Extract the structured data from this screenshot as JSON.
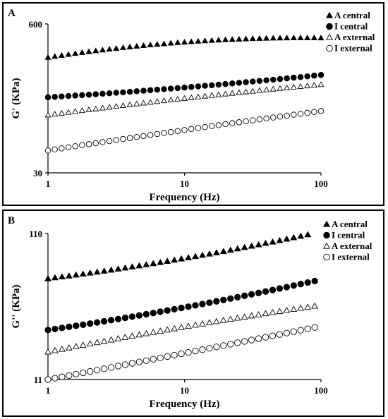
{
  "chart_data": [
    {
      "type": "scatter",
      "panel_label": "A",
      "title": "",
      "xlabel": "Frequency (Hz)",
      "ylabel": "G' (KPa)",
      "x_scale": "log",
      "y_scale": "log",
      "xlim": [
        1,
        100
      ],
      "ylim": [
        30,
        600
      ],
      "xticks": [
        "1",
        "10",
        "100"
      ],
      "yticks": [
        "30",
        "600"
      ],
      "legend_position": "top-right",
      "series": [
        {
          "name": "A central",
          "marker": "filled-triangle",
          "x_range": [
            1,
            100
          ],
          "y_start": 306,
          "y_end": 453,
          "y_mid": 416,
          "points": 41
        },
        {
          "name": "I central",
          "marker": "filled-circle",
          "x_range": [
            1,
            100
          ],
          "y_start": 137,
          "y_end": 215,
          "y_mid": 167,
          "points": 41
        },
        {
          "name": "A external",
          "marker": "open-triangle",
          "x_range": [
            1,
            100
          ],
          "y_start": 96,
          "y_end": 177,
          "y_mid": 134,
          "points": 41
        },
        {
          "name": "I external",
          "marker": "open-circle",
          "x_range": [
            1,
            100
          ],
          "y_start": 47,
          "y_end": 104,
          "y_mid": 71,
          "points": 41
        }
      ]
    },
    {
      "type": "scatter",
      "panel_label": "B",
      "title": "",
      "xlabel": "Frequency (Hz)",
      "ylabel": "G'' (KPa)",
      "x_scale": "log",
      "y_scale": "log",
      "xlim": [
        1,
        100
      ],
      "ylim": [
        11,
        110
      ],
      "xticks": [
        "1",
        "10",
        "100"
      ],
      "yticks": [
        "11",
        "110"
      ],
      "legend_position": "top-right",
      "series": [
        {
          "name": "A central",
          "marker": "filled-triangle",
          "x_range": [
            1,
            80
          ],
          "y_start": 54,
          "y_end": 108,
          "y_mid": 73,
          "points": 38
        },
        {
          "name": "I central",
          "marker": "filled-circle",
          "x_range": [
            1,
            90
          ],
          "y_start": 24,
          "y_end": 52,
          "y_mid": 34,
          "points": 39
        },
        {
          "name": "A external",
          "marker": "open-triangle",
          "x_range": [
            1,
            90
          ],
          "y_start": 17,
          "y_end": 35,
          "y_mid": 25,
          "points": 39
        },
        {
          "name": "I external",
          "marker": "open-circle",
          "x_range": [
            1,
            90
          ],
          "y_start": 11,
          "y_end": 25,
          "y_mid": 16.5,
          "points": 39
        }
      ]
    }
  ]
}
